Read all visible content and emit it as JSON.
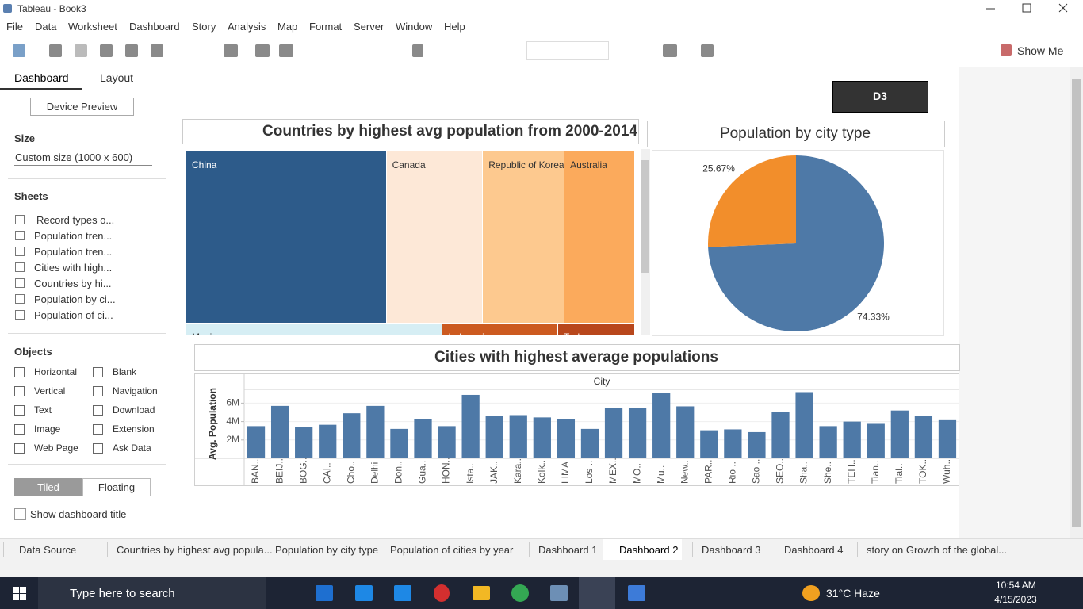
{
  "window": {
    "title": "Tableau - Book3"
  },
  "menu": [
    "File",
    "Data",
    "Worksheet",
    "Dashboard",
    "Story",
    "Analysis",
    "Map",
    "Format",
    "Server",
    "Window",
    "Help"
  ],
  "toolbar": {
    "show_me": "Show Me"
  },
  "sidebar": {
    "tabs": [
      "Dashboard",
      "Layout"
    ],
    "device_preview": "Device Preview",
    "size_heading": "Size",
    "size_value": "Custom size (1000 x 600)",
    "sheets_heading": "Sheets",
    "sheets": [
      "Record types o...",
      "Population tren...",
      "Population tren...",
      "Cities with high...",
      "Countries by hi...",
      "Population by ci...",
      "Population of ci..."
    ],
    "objects_heading": "Objects",
    "objects": [
      "Horizontal",
      "Blank",
      "Vertical",
      "Navigation",
      "Text",
      "Download",
      "Image",
      "Extension",
      "Web Page",
      "Ask Data"
    ],
    "layout_modes": [
      "Tiled",
      "Floating"
    ],
    "show_title": "Show dashboard title"
  },
  "dashboard": {
    "button": "D3"
  },
  "chart_data": [
    {
      "type": "treemap",
      "title": "Countries by highest avg population from 2000-2014",
      "categories": [
        "China",
        "Canada",
        "Republic of Korea",
        "Australia",
        "Mexico",
        "Indonesia",
        "Turkey"
      ],
      "values": [
        54,
        26,
        22,
        19,
        20,
        9,
        6
      ],
      "colors": [
        "#2d5b8a",
        "#fde8d7",
        "#fdc98f",
        "#fbaa5c",
        "#d6eef4",
        "#cc5a20",
        "#b8471c"
      ]
    },
    {
      "type": "pie",
      "title": "Population by city type",
      "values": [
        74.33,
        25.67
      ],
      "value_labels": [
        "74.33%",
        "25.67%"
      ],
      "colors": [
        "#4e79a7",
        "#f28e2b"
      ]
    },
    {
      "type": "bar",
      "title": "Cities with highest average populations",
      "x_label": "City",
      "y_label": "Avg. Population",
      "categories": [
        "BAN..",
        "BEIJ..",
        "BOG..",
        "CAI..",
        "Cho..",
        "Delhi",
        "Don..",
        "Gua..",
        "HON..",
        "Ista..",
        "JAK..",
        "Kara..",
        "Kolk..",
        "LIMA",
        "Los ..",
        "MEX..",
        "MO..",
        "Mu..",
        "New..",
        "PAR..",
        "Rio ..",
        "Sao ..",
        "SEO..",
        "Sha..",
        "She..",
        "TEH..",
        "Tian..",
        "Tial..",
        "TOK..",
        "Wuh.."
      ],
      "values": [
        3500000,
        5700000,
        3400000,
        3650000,
        4900000,
        5700000,
        3200000,
        4250000,
        3500000,
        6900000,
        4600000,
        4700000,
        4450000,
        4250000,
        3200000,
        5500000,
        5500000,
        7100000,
        5650000,
        3050000,
        3150000,
        2850000,
        5050000,
        7200000,
        3500000,
        4000000,
        3750000,
        5200000,
        4600000,
        4150000
      ],
      "color": "#4e79a7",
      "ylim": [
        0,
        7500000
      ],
      "yticks": [
        {
          "value": 2000000,
          "label": "2M"
        },
        {
          "value": 4000000,
          "label": "4M"
        },
        {
          "value": 6000000,
          "label": "6M"
        }
      ],
      "grid": true
    }
  ],
  "tabs": [
    "Data Source",
    "Countries by highest avg popula...",
    "Population by city type",
    "Population of cities by year",
    "Dashboard 1",
    "Dashboard 2",
    "Dashboard 3",
    "Dashboard 4",
    "story on Growth of the global..."
  ],
  "taskbar": {
    "search": "Type here to search",
    "weather": "31°C Haze",
    "time": "10:54 AM",
    "date": "4/15/2023"
  }
}
